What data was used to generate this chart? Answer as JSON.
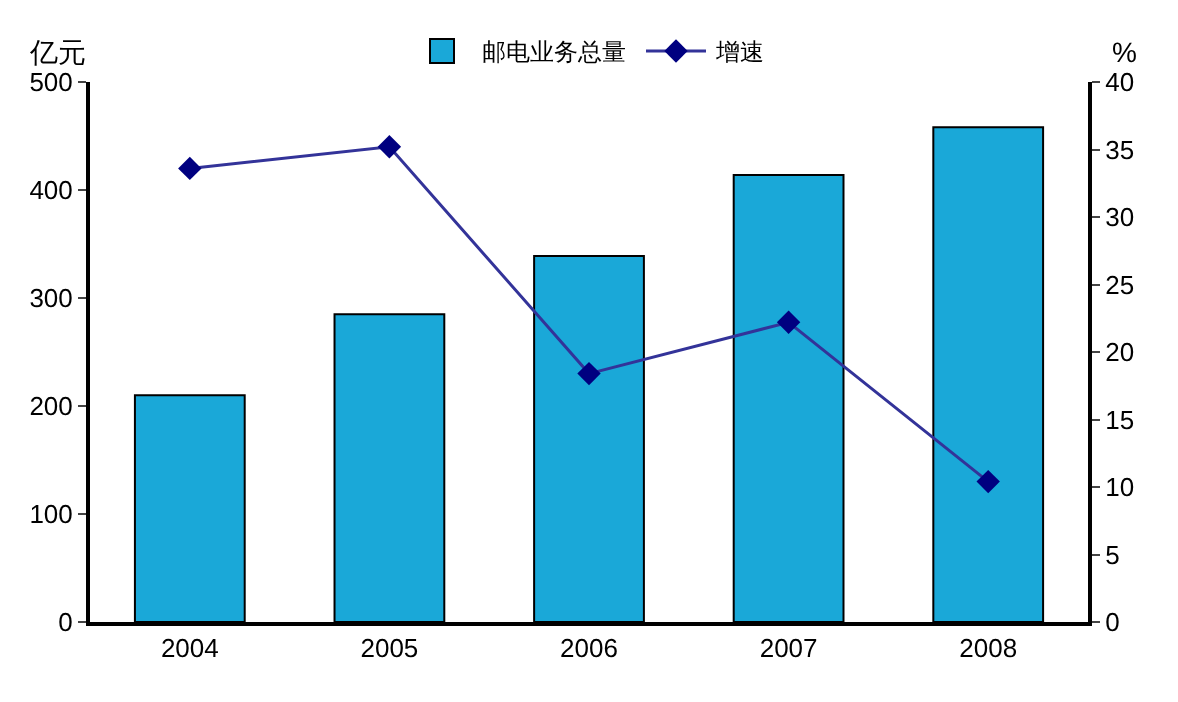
{
  "chart_data": {
    "type": "bar",
    "ylabel": "亿元",
    "y2label": "%",
    "categories": [
      "2004",
      "2005",
      "2006",
      "2007",
      "2008"
    ],
    "series": [
      {
        "name": "邮电业务总量",
        "color": "#1aa8d8",
        "values": [
          210,
          285,
          339,
          414,
          458
        ]
      },
      {
        "name": "增速",
        "type": "line",
        "axis": "y2",
        "color": "#333399",
        "marker": "diamond",
        "values": [
          33.6,
          35.2,
          18.4,
          22.2,
          10.4
        ]
      }
    ],
    "ylim": [
      0,
      500
    ],
    "yticks": [
      0,
      100,
      200,
      300,
      400,
      500
    ],
    "y2lim": [
      0,
      40
    ],
    "y2ticks": [
      0,
      5,
      10,
      15,
      20,
      25,
      30,
      35,
      40
    ],
    "legend": "top"
  }
}
